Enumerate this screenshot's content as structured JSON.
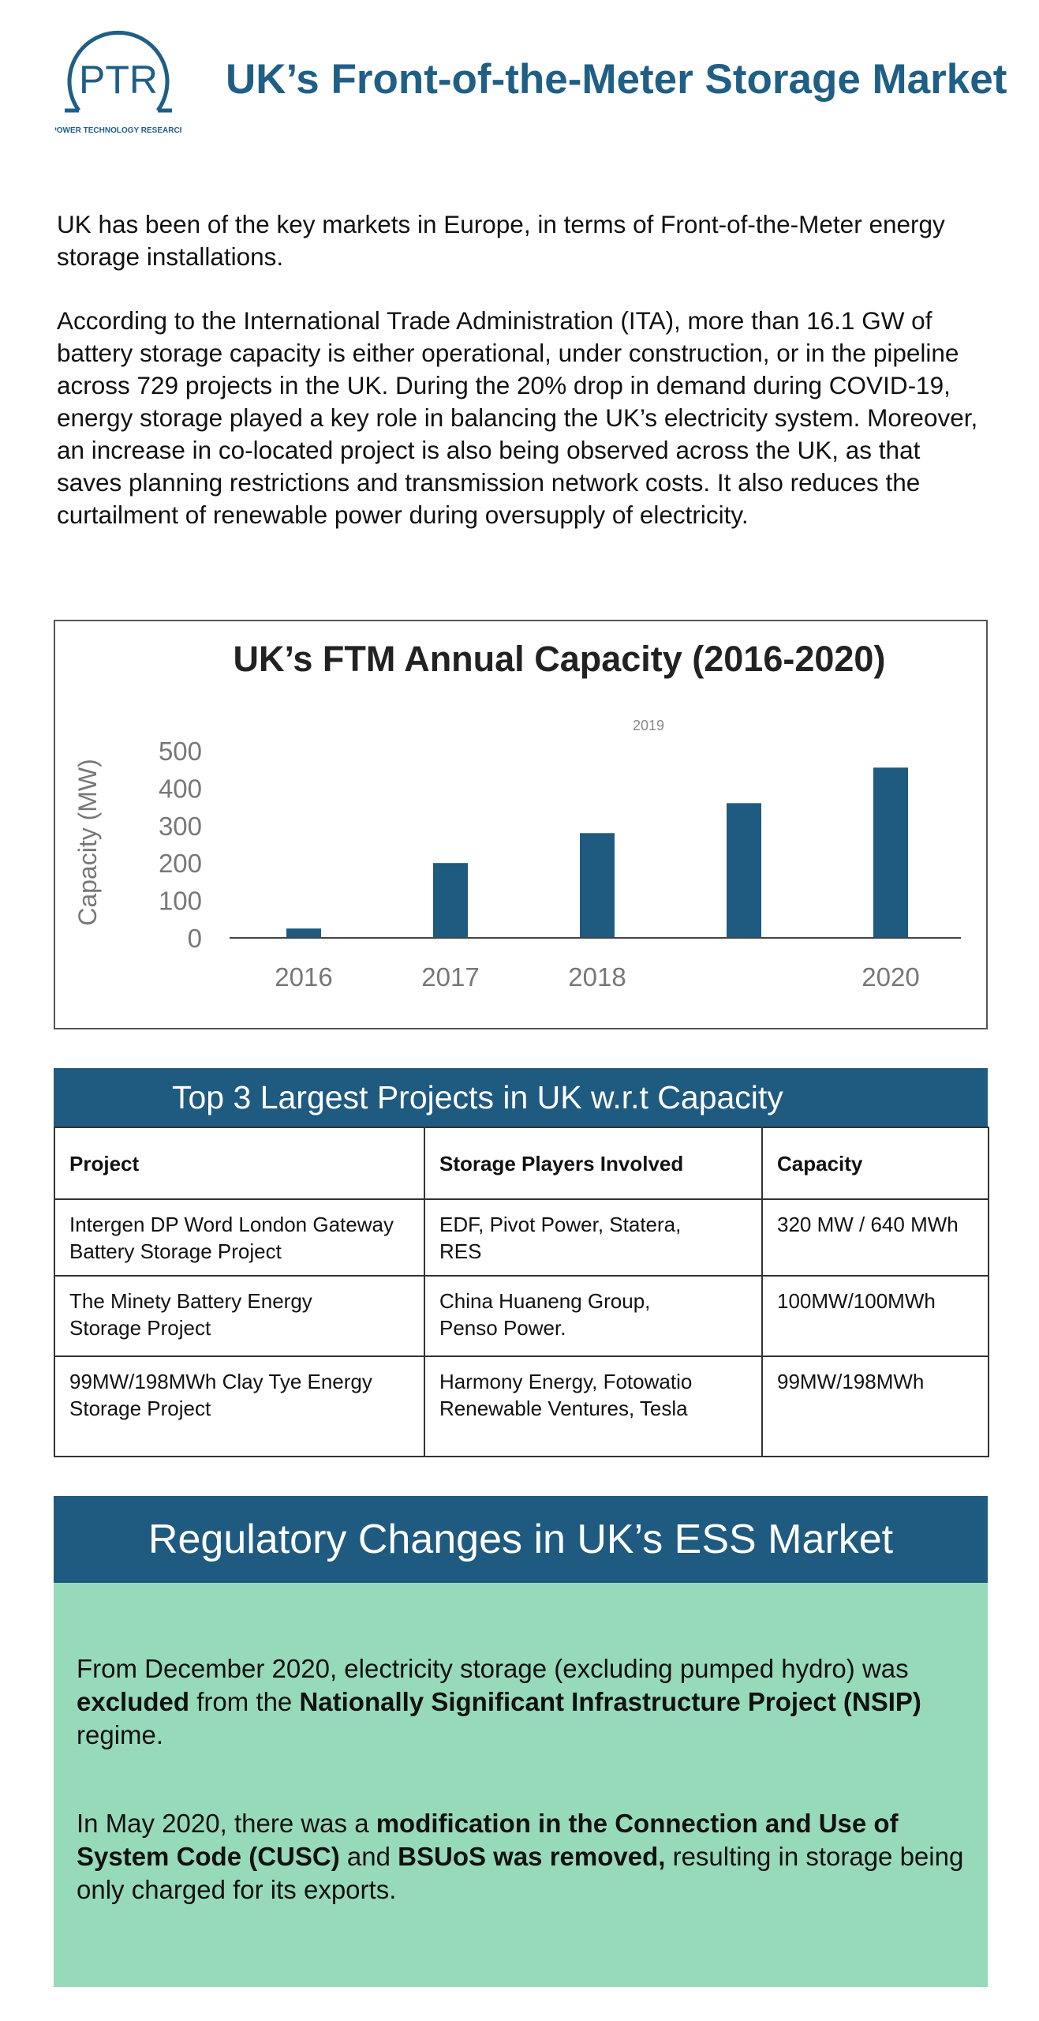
{
  "header": {
    "logo_text": "PTR",
    "logo_subtext": "POWER TECHNOLOGY RESEARCH",
    "title": "UK’s Front-of-the-Meter Storage Market",
    "brand_color": "#1f5f86"
  },
  "intro": {
    "paragraph1": "UK has been of the key markets in Europe, in terms of Front-of-the-Meter energy storage installations.",
    "paragraph2": "According to the International Trade Administration (ITA), more than 16.1 GW of battery storage capacity is either operational, under construction, or in the pipeline across 729 projects in the UK. During the 20% drop in demand during COVID-19, energy storage played a key role in balancing the UK’s electricity system.  Moreover, an increase in co-located project is also being observed across the UK, as that saves planning restrictions and transmission network costs. It also reduces the curtailment of renewable power during oversupply of electricity."
  },
  "chart_data": {
    "type": "bar",
    "title": "UK’s FTM Annual Capacity (2016-2020)",
    "ylabel": "Capacity (MW)",
    "xlabel": "",
    "categories": [
      "2016",
      "2017",
      "2018",
      "2019",
      "2020"
    ],
    "x_tick_labels": [
      "2016",
      "2017",
      "2018",
      "",
      "2020"
    ],
    "floating_label": "2019",
    "values": [
      25,
      200,
      280,
      360,
      455
    ],
    "ylim": [
      0,
      500
    ],
    "yticks": [
      0,
      100,
      200,
      300,
      400,
      500
    ],
    "grid": false,
    "bar_color": "#1f5a80"
  },
  "projects_table": {
    "banner": "Top 3 Largest Projects in UK w.r.t Capacity",
    "headers": [
      "Project",
      "Storage Players Involved",
      "Capacity"
    ],
    "rows": [
      [
        "Intergen DP Word London Gateway Battery Storage Project",
        "EDF, Pivot Power, Statera, RES",
        "320 MW / 640 MWh"
      ],
      [
        "The Minety Battery Energy Storage Project",
        "China Huaneng Group, Penso Power.",
        "100MW/100MWh"
      ],
      [
        "99MW/198MWh Clay Tye Energy Storage Project",
        "Harmony Energy, Fotowatio Renewable Ventures, Tesla",
        "99MW/198MWh"
      ]
    ]
  },
  "regulatory": {
    "banner": "Regulatory Changes in UK’s ESS Market",
    "p1": {
      "t1": "From December 2020, electricity storage (excluding pumped hydro) was ",
      "b1": "excluded",
      "t2": " from the ",
      "b2": "Nationally Significant Infrastructure Project (NSIP)",
      "t3": " regime."
    },
    "p2": {
      "t1": "In May 2020, there was a ",
      "b1": "modification in the Connection and Use of System Code (CUSC)",
      "t2": " and ",
      "b2": "BSUoS was removed,",
      "t3": " resulting in storage being only charged for its exports."
    },
    "panel_color": "#97dab9"
  }
}
